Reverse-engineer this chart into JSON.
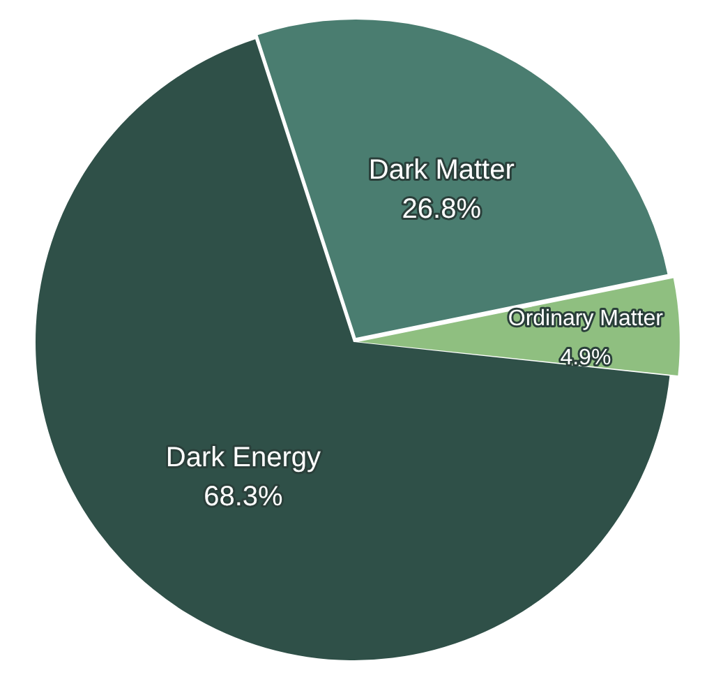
{
  "chart_data": {
    "type": "pie",
    "categories": [
      "Dark Matter",
      "Ordinary Matter",
      "Dark Energy"
    ],
    "values": [
      26.8,
      4.9,
      68.3
    ],
    "colors": [
      "#4a7d70",
      "#8fbf80",
      "#2f5048"
    ],
    "value_labels": [
      "26.8%",
      "4.9%",
      "68.3%"
    ],
    "legend": false
  }
}
